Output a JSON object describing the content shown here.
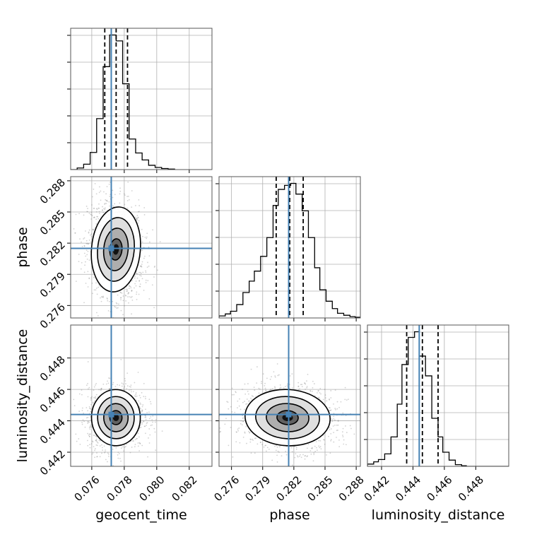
{
  "chart_data": {
    "type": "corner",
    "parameters": [
      "geocent_time",
      "phase",
      "luminosity_distance"
    ],
    "axis_labels": {
      "geocent_time": "geocent_time",
      "phase": "phase",
      "luminosity_distance": "luminosity_distance"
    },
    "ranges": {
      "geocent_time": [
        0.0747,
        0.0834
      ],
      "phase": [
        0.2748,
        0.2884
      ],
      "luminosity_distance": [
        0.4411,
        0.4501
      ]
    },
    "ticks": {
      "geocent_time": [
        {
          "value": 0.076,
          "label": "0.076"
        },
        {
          "value": 0.078,
          "label": "0.078"
        },
        {
          "value": 0.08,
          "label": "0.080"
        },
        {
          "value": 0.082,
          "label": "0.082"
        }
      ],
      "phase": [
        {
          "value": 0.276,
          "label": "0.276"
        },
        {
          "value": 0.279,
          "label": "0.279"
        },
        {
          "value": 0.282,
          "label": "0.282"
        },
        {
          "value": 0.285,
          "label": "0.285"
        },
        {
          "value": 0.288,
          "label": "0.288"
        }
      ],
      "luminosity_distance": [
        {
          "value": 0.442,
          "label": "0.442"
        },
        {
          "value": 0.444,
          "label": "0.444"
        },
        {
          "value": 0.446,
          "label": "0.446"
        },
        {
          "value": 0.448,
          "label": "0.448"
        }
      ]
    },
    "truths": {
      "geocent_time": 0.0772,
      "phase": 0.2815,
      "luminosity_distance": 0.4444
    },
    "quantiles": {
      "geocent_time": [
        0.0768,
        0.0775,
        0.0782
      ],
      "phase": [
        0.2803,
        0.2816,
        0.2829
      ],
      "luminosity_distance": [
        0.4436,
        0.4446,
        0.4456
      ]
    },
    "histograms": {
      "geocent_time": {
        "bin_edges": [
          0.0747,
          0.0751,
          0.0755,
          0.0759,
          0.0763,
          0.0767,
          0.0771,
          0.0775,
          0.0779,
          0.0783,
          0.0787,
          0.0791,
          0.0795,
          0.0799,
          0.0803,
          0.0807,
          0.0811
        ],
        "counts": [
          0,
          3,
          10,
          32,
          95,
          192,
          251,
          240,
          160,
          57,
          31,
          18,
          8,
          4,
          2,
          1
        ]
      },
      "phase": {
        "bin_edges": [
          0.2748,
          0.2754,
          0.2759,
          0.2765,
          0.2771,
          0.2777,
          0.2782,
          0.2788,
          0.2794,
          0.28,
          0.2805,
          0.2811,
          0.2817,
          0.2822,
          0.2828,
          0.2834,
          0.284,
          0.2845,
          0.2851,
          0.2857,
          0.2862,
          0.2868,
          0.2874,
          0.2879,
          0.2884
        ],
        "counts": [
          3,
          6,
          10,
          20,
          38,
          55,
          70,
          92,
          120,
          168,
          192,
          198,
          201,
          185,
          160,
          120,
          75,
          42,
          25,
          14,
          7,
          4,
          2,
          1
        ]
      },
      "luminosity_distance": {
        "bin_edges": [
          0.4411,
          0.4415,
          0.4418,
          0.4422,
          0.4426,
          0.443,
          0.4433,
          0.4437,
          0.4441,
          0.4444,
          0.4448,
          0.4452,
          0.4456,
          0.4459,
          0.4463,
          0.4467,
          0.4471,
          0.4474,
          0.4478,
          0.4482,
          0.4486,
          0.4489,
          0.4493,
          0.4497,
          0.4501
        ],
        "counts": [
          4,
          8,
          12,
          22,
          52,
          110,
          180,
          228,
          238,
          195,
          160,
          85,
          52,
          25,
          11,
          3,
          1,
          0,
          0,
          0,
          0,
          0,
          0,
          0
        ]
      }
    },
    "contour_levels_sigma": [
      0.5,
      1.0,
      1.5,
      2.0
    ],
    "marginal_correlations": {
      "phase|geocent_time": -0.15,
      "luminosity_distance|geocent_time": 0.05,
      "luminosity_distance|phase": -0.1
    },
    "grid": true,
    "colors": {
      "truth": "#4682b4",
      "histogram": "#000000",
      "contour": "#000000",
      "samples": "#7f7f7f",
      "grid": "#b0b0b0"
    }
  }
}
